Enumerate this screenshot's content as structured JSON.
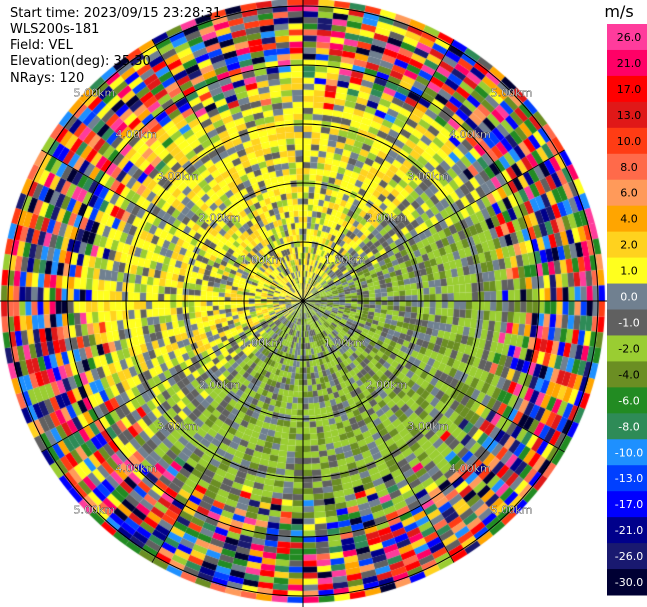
{
  "header": {
    "start_time": "Start time: 2023/09/15 23:28:31",
    "instrument": "WLS200s-181",
    "field": "Field: VEL",
    "elevation": "Elevation(deg): 35.30",
    "nrays": "NRays: 120"
  },
  "chart_data": {
    "type": "heatmap",
    "projection": "polar-ppi",
    "field": "VEL",
    "nrays": 120,
    "range_rings": [
      "1.00km",
      "2.00km",
      "3.00km",
      "4.00km",
      "5.00km"
    ],
    "range_rings_km": [
      1,
      2,
      3,
      4,
      5
    ],
    "colorbar": {
      "unit": "m/s",
      "tick_labels": [
        "26.0",
        "21.0",
        "17.0",
        "13.0",
        "10.0",
        "8.0",
        "6.0",
        "4.0",
        "2.0",
        "1.0",
        "0.0",
        "-1.0",
        "-2.0",
        "-4.0",
        "-6.0",
        "-8.0",
        "-10.0",
        "-13.0",
        "-17.0",
        "-21.0",
        "-26.0",
        "-30.0"
      ],
      "colors": [
        "#ff3c9c",
        "#ff0066",
        "#ff0000",
        "#e01818",
        "#ff3c14",
        "#ff6a4a",
        "#ff9a5a",
        "#ffa500",
        "#ffd21e",
        "#ffff1e",
        "#708090",
        "#606060",
        "#9acd32",
        "#6b8e23",
        "#228b22",
        "#2e8b57",
        "#1e90ff",
        "#0040ff",
        "#0000ff",
        "#00008b",
        "#191970",
        "#000033"
      ]
    }
  }
}
